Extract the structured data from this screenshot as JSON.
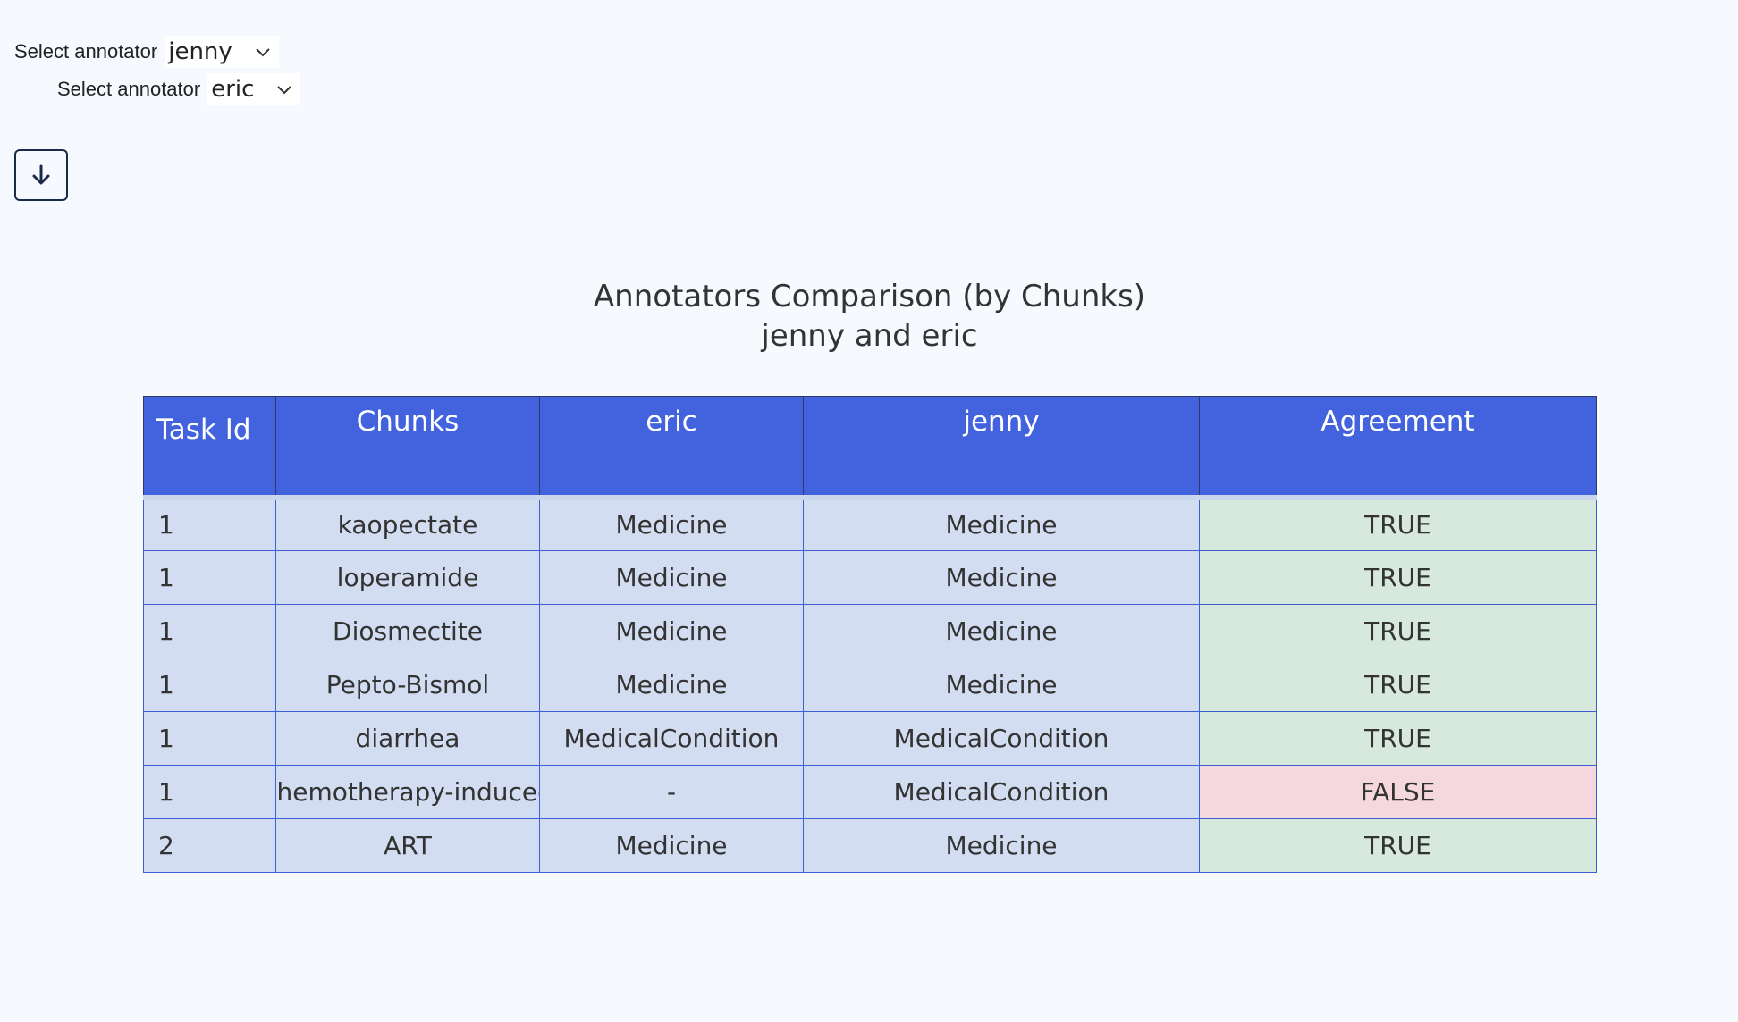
{
  "selectors": [
    {
      "label": "Select annotator",
      "value": "jenny"
    },
    {
      "label": "Select annotator",
      "value": "eric"
    }
  ],
  "download_button": {
    "icon": "arrow-down-icon"
  },
  "title": {
    "line1": "Annotators Comparison (by Chunks)",
    "line2": "jenny and eric"
  },
  "table": {
    "headers": {
      "task_id": "Task Id",
      "chunks": "Chunks",
      "eric": "eric",
      "jenny": "jenny",
      "agreement": "Agreement"
    },
    "rows": [
      {
        "task_id": "1",
        "chunk": "kaopectate",
        "eric": "Medicine",
        "jenny": "Medicine",
        "agreement": "TRUE"
      },
      {
        "task_id": "1",
        "chunk": "loperamide",
        "eric": "Medicine",
        "jenny": "Medicine",
        "agreement": "TRUE"
      },
      {
        "task_id": "1",
        "chunk": "Diosmectite",
        "eric": "Medicine",
        "jenny": "Medicine",
        "agreement": "TRUE"
      },
      {
        "task_id": "1",
        "chunk": "Pepto-Bismol",
        "eric": "Medicine",
        "jenny": "Medicine",
        "agreement": "TRUE"
      },
      {
        "task_id": "1",
        "chunk": "diarrhea",
        "eric": "MedicalCondition",
        "jenny": "MedicalCondition",
        "agreement": "TRUE"
      },
      {
        "task_id": "1",
        "chunk": "chemotherapy-induced",
        "eric": "-",
        "jenny": "MedicalCondition",
        "agreement": "FALSE"
      },
      {
        "task_id": "2",
        "chunk": "ART",
        "eric": "Medicine",
        "jenny": "Medicine",
        "agreement": "TRUE"
      }
    ]
  },
  "colors": {
    "header_bg": "#4263dd",
    "cell_bg": "#d2ddf1",
    "agree_true_bg": "#d7e8dd",
    "agree_false_bg": "#f5d8de"
  }
}
